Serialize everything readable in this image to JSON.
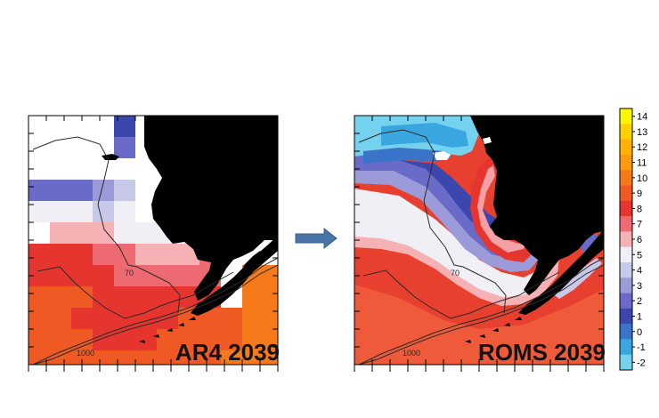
{
  "panels": [
    {
      "label": "AR4 2039",
      "contour_labels": [
        "70",
        "1000"
      ]
    },
    {
      "label": "ROMS 2039",
      "contour_labels": [
        "70",
        "1000"
      ]
    }
  ],
  "colorbar": {
    "ticks": [
      "14",
      "13",
      "12",
      "11",
      "10",
      "9",
      "8",
      "7",
      "6",
      "5",
      "4",
      "3",
      "2",
      "1",
      "0",
      "-1",
      "-2"
    ],
    "colors": [
      "#fff700",
      "#ffd000",
      "#ffb300",
      "#ff9a10",
      "#f77a1a",
      "#ef5a24",
      "#e6352f",
      "#ee6a72",
      "#f6b1b5",
      "#f0eff6",
      "#c8c9e8",
      "#9b9bd9",
      "#6a6ac8",
      "#3c47ae",
      "#3a74c8",
      "#39a6df",
      "#74d2ef"
    ]
  },
  "colors": {
    "land": "#000000",
    "contour": "#2b2b2b",
    "arrow": "#4a74a8"
  }
}
